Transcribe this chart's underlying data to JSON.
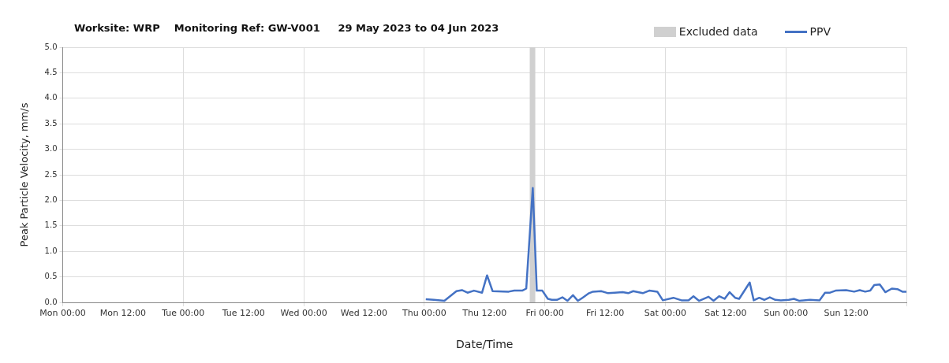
{
  "chart_data": {
    "type": "line",
    "title": "Worksite: WRP    Monitoring Ref: GW-V001     29 May 2023 to 04 Jun 2023",
    "xlabel": "Date/Time",
    "ylabel": "Peak Particle Velocity, mm/s",
    "xlim": [
      "2023-05-29T00:00",
      "2023-06-05T00:00"
    ],
    "xticks": [
      {
        "value": "2023-05-29T00:00",
        "label": "Mon 00:00"
      },
      {
        "value": "2023-05-29T12:00",
        "label": "Mon 12:00"
      },
      {
        "value": "2023-05-30T00:00",
        "label": "Tue 00:00"
      },
      {
        "value": "2023-05-30T12:00",
        "label": "Tue 12:00"
      },
      {
        "value": "2023-05-31T00:00",
        "label": "Wed 00:00"
      },
      {
        "value": "2023-05-31T12:00",
        "label": "Wed 12:00"
      },
      {
        "value": "2023-06-01T00:00",
        "label": "Thu 00:00"
      },
      {
        "value": "2023-06-01T12:00",
        "label": "Thu 12:00"
      },
      {
        "value": "2023-06-02T00:00",
        "label": "Fri 00:00"
      },
      {
        "value": "2023-06-02T12:00",
        "label": "Fri 12:00"
      },
      {
        "value": "2023-06-03T00:00",
        "label": "Sat 00:00"
      },
      {
        "value": "2023-06-03T12:00",
        "label": "Sat 12:00"
      },
      {
        "value": "2023-06-04T00:00",
        "label": "Sun 00:00"
      },
      {
        "value": "2023-06-04T12:00",
        "label": "Sun 12:00"
      },
      {
        "value": "2023-06-05T00:00",
        "label": null
      }
    ],
    "ylim": [
      0,
      5
    ],
    "yticks": [
      {
        "value": 0,
        "label": "0.0"
      },
      0.5,
      {
        "value": 1,
        "label": "1.0"
      },
      1.5,
      {
        "value": 2,
        "label": "2.0"
      },
      2.5,
      {
        "value": 3,
        "label": "3.0"
      },
      3.5,
      {
        "value": 4,
        "label": "4.0"
      },
      4.5,
      {
        "value": 5,
        "label": "5.0"
      }
    ],
    "grid": true,
    "legend": "top right",
    "marker": "none",
    "line_style": "solid",
    "bands": [
      {
        "axis": "x",
        "from": "2023-06-01T21:00",
        "to": "2023-06-01T22:06",
        "label": "Excluded data",
        "color": "#d0d0d0"
      }
    ],
    "series": [
      {
        "name": "PPV",
        "color": "#4472c4",
        "x": [
          "2023-06-01T00:18",
          "2023-06-01T01:54",
          "2023-06-01T04:00",
          "2023-06-01T06:24",
          "2023-06-01T07:30",
          "2023-06-01T08:36",
          "2023-06-01T09:54",
          "2023-06-01T11:30",
          "2023-06-01T12:30",
          "2023-06-01T13:36",
          "2023-06-01T16:48",
          "2023-06-01T17:54",
          "2023-06-01T19:30",
          "2023-06-01T20:18",
          "2023-06-01T21:36",
          "2023-06-01T22:24",
          "2023-06-01T23:30",
          "2023-06-02T00:36",
          "2023-06-02T01:24",
          "2023-06-02T02:24",
          "2023-06-02T03:30",
          "2023-06-02T04:30",
          "2023-06-02T05:36",
          "2023-06-02T06:36",
          "2023-06-02T07:30",
          "2023-06-02T08:48",
          "2023-06-02T09:36",
          "2023-06-02T11:12",
          "2023-06-02T12:36",
          "2023-06-02T13:54",
          "2023-06-02T15:30",
          "2023-06-02T16:36",
          "2023-06-02T17:36",
          "2023-06-02T19:30",
          "2023-06-02T20:48",
          "2023-06-02T22:24",
          "2023-06-02T23:30",
          "2023-06-03T01:36",
          "2023-06-03T03:12",
          "2023-06-03T04:36",
          "2023-06-03T05:36",
          "2023-06-03T06:42",
          "2023-06-03T08:36",
          "2023-06-03T09:36",
          "2023-06-03T10:42",
          "2023-06-03T11:48",
          "2023-06-03T12:48",
          "2023-06-03T13:54",
          "2023-06-03T14:42",
          "2023-06-03T16:48",
          "2023-06-03T17:36",
          "2023-06-03T18:42",
          "2023-06-03T19:42",
          "2023-06-03T20:48",
          "2023-06-03T21:54",
          "2023-06-03T23:00",
          "2023-06-04T00:36",
          "2023-06-04T01:36",
          "2023-06-04T02:42",
          "2023-06-04T04:48",
          "2023-06-04T06:42",
          "2023-06-04T07:48",
          "2023-06-04T08:48",
          "2023-06-04T09:54",
          "2023-06-04T12:00",
          "2023-06-04T13:36",
          "2023-06-04T14:42",
          "2023-06-04T15:48",
          "2023-06-04T16:48",
          "2023-06-04T17:36",
          "2023-06-04T18:42",
          "2023-06-04T19:48",
          "2023-06-04T21:06",
          "2023-06-04T22:12",
          "2023-06-04T23:12",
          "2023-06-05T00:00"
        ],
        "values": [
          0.06,
          0.05,
          0.03,
          0.22,
          0.24,
          0.19,
          0.23,
          0.19,
          0.53,
          0.22,
          0.21,
          0.23,
          0.23,
          0.27,
          2.24,
          0.23,
          0.23,
          0.07,
          0.05,
          0.05,
          0.1,
          0.03,
          0.14,
          0.03,
          0.09,
          0.18,
          0.21,
          0.22,
          0.18,
          0.19,
          0.2,
          0.18,
          0.22,
          0.18,
          0.23,
          0.21,
          0.04,
          0.09,
          0.04,
          0.04,
          0.12,
          0.03,
          0.11,
          0.03,
          0.12,
          0.07,
          0.2,
          0.09,
          0.07,
          0.39,
          0.04,
          0.09,
          0.05,
          0.1,
          0.05,
          0.04,
          0.05,
          0.07,
          0.03,
          0.05,
          0.04,
          0.19,
          0.19,
          0.23,
          0.24,
          0.21,
          0.24,
          0.21,
          0.23,
          0.34,
          0.35,
          0.2,
          0.27,
          0.26,
          0.21,
          0.21
        ]
      }
    ]
  }
}
